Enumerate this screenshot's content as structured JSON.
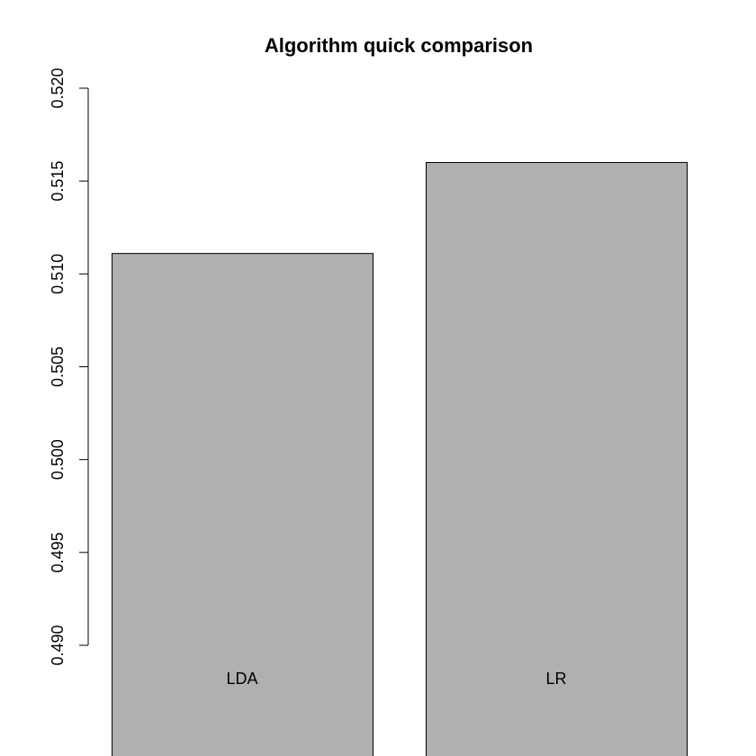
{
  "chart_data": {
    "type": "bar",
    "title": "Algorithm quick comparison",
    "xlabel": "",
    "ylabel": "",
    "categories": [
      "LDA",
      "LR"
    ],
    "values": [
      0.5111,
      0.516
    ],
    "ylim": [
      0.49,
      0.52
    ],
    "yticks": [
      "0.490",
      "0.495",
      "0.500",
      "0.505",
      "0.510",
      "0.515",
      "0.520"
    ],
    "bar_color": "#b0b0b0",
    "bar_edge_color": "#000000",
    "grid": false,
    "legend": "none"
  }
}
